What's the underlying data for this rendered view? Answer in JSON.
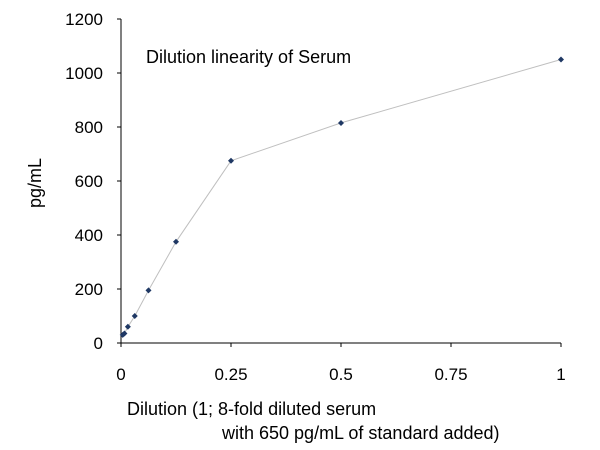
{
  "chart_data": {
    "type": "scatter",
    "title": "Dilution linearity of Serum",
    "xlabel_lines": [
      "Dilution (1; 8-fold diluted serum",
      "with 650 pg/mL of standard added)"
    ],
    "ylabel": "pg/mL",
    "xlim": [
      0,
      1
    ],
    "ylim": [
      0,
      1200
    ],
    "x_ticks": [
      0,
      0.25,
      0.5,
      0.75,
      1
    ],
    "x_tick_labels": [
      "0",
      "0.25",
      "0.5",
      "0.75",
      "1"
    ],
    "y_ticks": [
      0,
      200,
      400,
      600,
      800,
      1000,
      1200
    ],
    "y_tick_labels": [
      "0",
      "200",
      "400",
      "600",
      "800",
      "1000",
      "1200"
    ],
    "grid": false,
    "legend": "none",
    "series": [
      {
        "x": [
          0.0039,
          0.0078,
          0.0156,
          0.03125,
          0.0625,
          0.125,
          0.25,
          0.5,
          1
        ],
        "y": [
          30,
          35,
          60,
          100,
          195,
          375,
          675,
          815,
          1050
        ],
        "marker": "diamond",
        "marker_color": "#1f3864",
        "line_color": "#bfbfbf"
      }
    ]
  }
}
